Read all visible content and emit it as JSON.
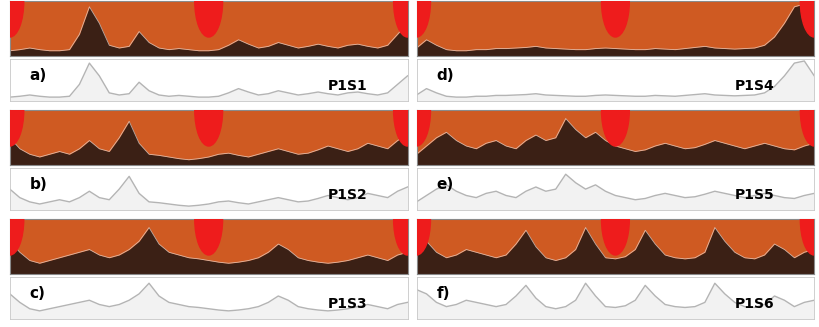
{
  "chart_data": [
    {
      "type": "line",
      "title": "P1S1",
      "annotations": [
        "a)"
      ],
      "color": "#b4b4b4",
      "tick_labels": false,
      "x": [
        0,
        1,
        2,
        3,
        4,
        5,
        6,
        7,
        8,
        9,
        10,
        11,
        12,
        13,
        14,
        15,
        16,
        17,
        18,
        19,
        20,
        21,
        22,
        23,
        24,
        25,
        26,
        27,
        28,
        29,
        30,
        31,
        32,
        33,
        34,
        35,
        36,
        37,
        38,
        39,
        40
      ],
      "values": [
        10,
        12,
        15,
        12,
        10,
        10,
        12,
        40,
        90,
        60,
        20,
        15,
        18,
        45,
        25,
        15,
        12,
        14,
        12,
        10,
        10,
        12,
        20,
        30,
        22,
        15,
        18,
        25,
        20,
        15,
        18,
        22,
        18,
        15,
        20,
        22,
        18,
        15,
        20,
        40,
        60
      ],
      "xlim": [
        0,
        40
      ],
      "ylim": [
        0,
        100
      ]
    },
    {
      "type": "line",
      "title": "P1S2",
      "annotations": [
        "b)"
      ],
      "color": "#b4b4b4",
      "tick_labels": false,
      "x": [
        0,
        1,
        2,
        3,
        4,
        5,
        6,
        7,
        8,
        9,
        10,
        11,
        12,
        13,
        14,
        15,
        16,
        17,
        18,
        19,
        20,
        21,
        22,
        23,
        24,
        25,
        26,
        27,
        28,
        29,
        30,
        31,
        32,
        33,
        34,
        35,
        36,
        37,
        38,
        39,
        40
      ],
      "values": [
        50,
        30,
        20,
        15,
        20,
        25,
        20,
        30,
        45,
        30,
        25,
        50,
        80,
        40,
        20,
        18,
        15,
        12,
        10,
        12,
        15,
        20,
        22,
        18,
        15,
        20,
        25,
        30,
        25,
        20,
        22,
        28,
        35,
        30,
        25,
        30,
        40,
        35,
        30,
        45,
        55
      ],
      "xlim": [
        0,
        40
      ],
      "ylim": [
        0,
        100
      ]
    },
    {
      "type": "line",
      "title": "P1S3",
      "annotations": [
        "c)"
      ],
      "color": "#b4b4b4",
      "tick_labels": false,
      "x": [
        0,
        1,
        2,
        3,
        4,
        5,
        6,
        7,
        8,
        9,
        10,
        11,
        12,
        13,
        14,
        15,
        16,
        17,
        18,
        19,
        20,
        21,
        22,
        23,
        24,
        25,
        26,
        27,
        28,
        29,
        30,
        31,
        32,
        33,
        34,
        35,
        36,
        37,
        38,
        39,
        40
      ],
      "values": [
        60,
        40,
        25,
        20,
        25,
        30,
        35,
        40,
        45,
        35,
        30,
        35,
        45,
        60,
        85,
        55,
        40,
        35,
        30,
        28,
        25,
        22,
        20,
        22,
        25,
        30,
        40,
        55,
        45,
        30,
        25,
        22,
        20,
        22,
        25,
        30,
        35,
        30,
        25,
        35,
        40
      ],
      "xlim": [
        0,
        40
      ],
      "ylim": [
        0,
        100
      ]
    },
    {
      "type": "line",
      "title": "P1S4",
      "annotations": [
        "d)"
      ],
      "color": "#b4b4b4",
      "tick_labels": false,
      "x": [
        0,
        1,
        2,
        3,
        4,
        5,
        6,
        7,
        8,
        9,
        10,
        11,
        12,
        13,
        14,
        15,
        16,
        17,
        18,
        19,
        20,
        21,
        22,
        23,
        24,
        25,
        26,
        27,
        28,
        29,
        30,
        31,
        32,
        33,
        34,
        35,
        36,
        37,
        38,
        39,
        40
      ],
      "values": [
        15,
        30,
        20,
        12,
        10,
        10,
        12,
        12,
        14,
        14,
        15,
        16,
        18,
        15,
        14,
        13,
        12,
        12,
        14,
        15,
        14,
        13,
        12,
        12,
        14,
        13,
        12,
        14,
        16,
        18,
        15,
        14,
        13,
        14,
        15,
        20,
        35,
        60,
        90,
        95,
        60
      ],
      "xlim": [
        0,
        40
      ],
      "ylim": [
        0,
        100
      ]
    },
    {
      "type": "line",
      "title": "P1S5",
      "annotations": [
        "e)"
      ],
      "color": "#b4b4b4",
      "tick_labels": false,
      "x": [
        0,
        1,
        2,
        3,
        4,
        5,
        6,
        7,
        8,
        9,
        10,
        11,
        12,
        13,
        14,
        15,
        16,
        17,
        18,
        19,
        20,
        21,
        22,
        23,
        24,
        25,
        26,
        27,
        28,
        29,
        30,
        31,
        32,
        33,
        34,
        35,
        36,
        37,
        38,
        39,
        40
      ],
      "values": [
        20,
        35,
        50,
        60,
        45,
        35,
        30,
        40,
        45,
        35,
        30,
        45,
        55,
        45,
        50,
        85,
        65,
        50,
        60,
        45,
        35,
        30,
        25,
        28,
        35,
        40,
        35,
        30,
        32,
        38,
        45,
        40,
        35,
        30,
        35,
        40,
        35,
        30,
        28,
        35,
        40
      ],
      "xlim": [
        0,
        40
      ],
      "ylim": [
        0,
        100
      ]
    },
    {
      "type": "line",
      "title": "P1S6",
      "annotations": [
        "f)"
      ],
      "color": "#b4b4b4",
      "tick_labels": false,
      "x": [
        0,
        1,
        2,
        3,
        4,
        5,
        6,
        7,
        8,
        9,
        10,
        11,
        12,
        13,
        14,
        15,
        16,
        17,
        18,
        19,
        20,
        21,
        22,
        23,
        24,
        25,
        26,
        27,
        28,
        29,
        30,
        31,
        32,
        33,
        34,
        35,
        36,
        37,
        38,
        39,
        40
      ],
      "values": [
        70,
        60,
        40,
        30,
        35,
        45,
        40,
        35,
        30,
        35,
        55,
        80,
        50,
        30,
        25,
        30,
        45,
        85,
        55,
        30,
        28,
        32,
        45,
        80,
        55,
        35,
        30,
        28,
        30,
        40,
        85,
        60,
        40,
        30,
        28,
        35,
        55,
        45,
        30,
        40,
        45
      ],
      "xlim": [
        0,
        40
      ],
      "ylim": [
        0,
        100
      ]
    }
  ]
}
